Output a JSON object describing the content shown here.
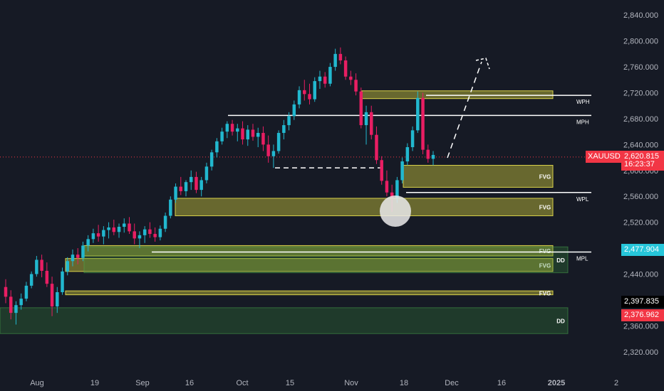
{
  "chart_data": {
    "type": "candlestick",
    "symbol": "XAUUSD",
    "ylim": [
      2300,
      2860
    ],
    "y_ticks": [
      "2,840.000",
      "2,800.000",
      "2,760.000",
      "2,720.000",
      "2,680.000",
      "2,640.000",
      "2,600.000",
      "2,560.000",
      "2,520.000",
      "2,480.000",
      "2,440.000",
      "2,400.000",
      "2,360.000",
      "2,320.000"
    ],
    "x_ticks": [
      "Aug",
      "19",
      "Sep",
      "16",
      "Oct",
      "15",
      "Nov",
      "18",
      "Dec",
      "16",
      "2025",
      "2"
    ],
    "candles": [
      [
        2420,
        2432,
        2395,
        2405
      ],
      [
        2405,
        2415,
        2370,
        2380
      ],
      [
        2380,
        2398,
        2362,
        2392
      ],
      [
        2392,
        2410,
        2385,
        2402
      ],
      [
        2402,
        2428,
        2398,
        2422
      ],
      [
        2422,
        2444,
        2418,
        2440
      ],
      [
        2440,
        2468,
        2436,
        2462
      ],
      [
        2462,
        2470,
        2435,
        2445
      ],
      [
        2445,
        2458,
        2420,
        2425
      ],
      [
        2425,
        2436,
        2375,
        2390
      ],
      [
        2390,
        2420,
        2380,
        2412
      ],
      [
        2412,
        2450,
        2408,
        2444
      ],
      [
        2444,
        2466,
        2438,
        2460
      ],
      [
        2460,
        2478,
        2452,
        2470
      ],
      [
        2470,
        2480,
        2455,
        2465
      ],
      [
        2465,
        2490,
        2460,
        2484
      ],
      [
        2484,
        2500,
        2475,
        2494
      ],
      [
        2494,
        2510,
        2488,
        2503
      ],
      [
        2503,
        2516,
        2490,
        2498
      ],
      [
        2498,
        2514,
        2486,
        2508
      ],
      [
        2508,
        2520,
        2495,
        2512
      ],
      [
        2512,
        2524,
        2500,
        2505
      ],
      [
        2505,
        2518,
        2496,
        2513
      ],
      [
        2513,
        2526,
        2504,
        2518
      ],
      [
        2518,
        2528,
        2502,
        2506
      ],
      [
        2506,
        2518,
        2486,
        2495
      ],
      [
        2495,
        2506,
        2480,
        2500
      ],
      [
        2500,
        2514,
        2488,
        2509
      ],
      [
        2509,
        2520,
        2496,
        2502
      ],
      [
        2502,
        2512,
        2490,
        2497
      ],
      [
        2497,
        2515,
        2492,
        2510
      ],
      [
        2510,
        2535,
        2505,
        2530
      ],
      [
        2530,
        2560,
        2526,
        2555
      ],
      [
        2555,
        2580,
        2550,
        2575
      ],
      [
        2575,
        2590,
        2562,
        2568
      ],
      [
        2568,
        2585,
        2560,
        2582
      ],
      [
        2582,
        2600,
        2570,
        2590
      ],
      [
        2590,
        2598,
        2565,
        2570
      ],
      [
        2570,
        2590,
        2560,
        2585
      ],
      [
        2585,
        2612,
        2580,
        2606
      ],
      [
        2606,
        2632,
        2600,
        2628
      ],
      [
        2628,
        2650,
        2620,
        2645
      ],
      [
        2645,
        2666,
        2640,
        2660
      ],
      [
        2660,
        2676,
        2650,
        2672
      ],
      [
        2672,
        2678,
        2654,
        2660
      ],
      [
        2660,
        2672,
        2645,
        2665
      ],
      [
        2665,
        2676,
        2640,
        2648
      ],
      [
        2648,
        2670,
        2638,
        2663
      ],
      [
        2663,
        2672,
        2646,
        2652
      ],
      [
        2652,
        2666,
        2636,
        2658
      ],
      [
        2658,
        2668,
        2630,
        2640
      ],
      [
        2640,
        2654,
        2612,
        2622
      ],
      [
        2622,
        2640,
        2604,
        2630
      ],
      [
        2630,
        2662,
        2626,
        2658
      ],
      [
        2658,
        2678,
        2648,
        2670
      ],
      [
        2670,
        2690,
        2662,
        2684
      ],
      [
        2684,
        2708,
        2678,
        2702
      ],
      [
        2702,
        2730,
        2696,
        2724
      ],
      [
        2724,
        2740,
        2708,
        2718
      ],
      [
        2718,
        2734,
        2702,
        2710
      ],
      [
        2710,
        2744,
        2706,
        2738
      ],
      [
        2738,
        2754,
        2726,
        2745
      ],
      [
        2745,
        2752,
        2728,
        2734
      ],
      [
        2734,
        2766,
        2730,
        2760
      ],
      [
        2760,
        2788,
        2754,
        2780
      ],
      [
        2780,
        2790,
        2764,
        2770
      ],
      [
        2770,
        2776,
        2740,
        2745
      ],
      [
        2745,
        2754,
        2732,
        2740
      ],
      [
        2740,
        2750,
        2716,
        2722
      ],
      [
        2722,
        2728,
        2665,
        2670
      ],
      [
        2670,
        2700,
        2640,
        2690
      ],
      [
        2690,
        2700,
        2648,
        2655
      ],
      [
        2655,
        2668,
        2610,
        2616
      ],
      [
        2616,
        2622,
        2578,
        2584
      ],
      [
        2584,
        2600,
        2560,
        2566
      ],
      [
        2566,
        2578,
        2536,
        2558
      ],
      [
        2558,
        2590,
        2550,
        2585
      ],
      [
        2585,
        2620,
        2580,
        2614
      ],
      [
        2614,
        2642,
        2608,
        2636
      ],
      [
        2636,
        2668,
        2630,
        2662
      ],
      [
        2662,
        2722,
        2658,
        2712
      ],
      [
        2712,
        2720,
        2625,
        2632
      ],
      [
        2632,
        2640,
        2612,
        2618
      ],
      [
        2618,
        2630,
        2608,
        2624
      ]
    ],
    "zones": [
      {
        "label": "",
        "y1": 2711,
        "y2": 2723,
        "color": "yellow"
      },
      {
        "label": "FVG",
        "y1": 2574,
        "y2": 2608,
        "color": "yellow"
      },
      {
        "label": "FVG",
        "y1": 2530,
        "y2": 2557,
        "color": "yellow"
      },
      {
        "label": "FVG",
        "y1": 2468,
        "y2": 2484,
        "color": "yellow"
      },
      {
        "label": "FVG",
        "y1": 2444,
        "y2": 2464,
        "color": "yellow"
      },
      {
        "label": "FVG",
        "y1": 2408,
        "y2": 2414,
        "color": "yellow"
      },
      {
        "label": "DD",
        "y1": 2442,
        "y2": 2482,
        "color": "green"
      },
      {
        "label": "DD",
        "y1": 2348,
        "y2": 2388,
        "color": "green"
      }
    ],
    "levels": [
      {
        "label": "WPH",
        "y": 2716
      },
      {
        "label": "MPH",
        "y": 2685
      },
      {
        "label": "WPL",
        "y": 2566
      },
      {
        "label": "MPL",
        "y": 2474
      }
    ],
    "dashed_level": 2604,
    "projection_target": 2770,
    "current_price": {
      "value": "2,620.815",
      "countdown": "16:23:37",
      "y": 2620.8
    },
    "price_tags": [
      {
        "text": "2,477.904",
        "y": 2477.9,
        "bg": "#26c6da",
        "color": "#ffffff"
      },
      {
        "text": "2,397.835",
        "y": 2397.8,
        "bg": "#000000",
        "color": "#ffffff"
      },
      {
        "text": "2,376.962",
        "y": 2377.0,
        "bg": "#f23645",
        "color": "#ffffff"
      }
    ]
  }
}
